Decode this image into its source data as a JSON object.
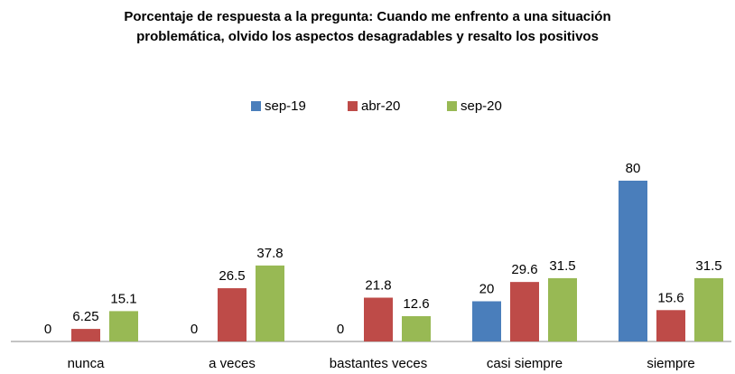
{
  "chart_data": {
    "type": "bar",
    "title": "Porcentaje de respuesta a la pregunta: Cuando me enfrento a una situación problemática, olvido los aspectos desagradables y resalto los positivos",
    "categories": [
      "nunca",
      "a veces",
      "bastantes veces",
      "casi siempre",
      "siempre"
    ],
    "series": [
      {
        "name": "sep-19",
        "color": "#4a7ebb",
        "values": [
          0,
          0,
          0,
          20,
          80
        ]
      },
      {
        "name": "abr-20",
        "color": "#be4b48",
        "values": [
          6.25,
          26.5,
          21.8,
          29.6,
          15.6
        ]
      },
      {
        "name": "sep-20",
        "color": "#98b954",
        "values": [
          15.1,
          37.8,
          12.6,
          31.5,
          31.5
        ]
      }
    ],
    "legend": "top"
  }
}
